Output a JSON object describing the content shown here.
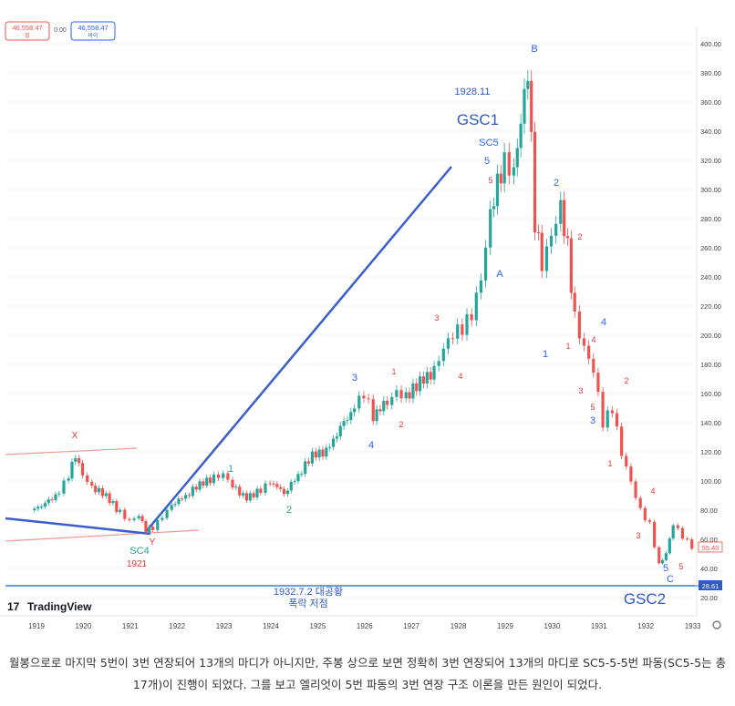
{
  "price_badges": {
    "bid": "46,558.47",
    "bid_label": "팝",
    "spread": "0.00",
    "ask": "46,558.47",
    "ask_label": "바이"
  },
  "colors": {
    "up": "#26a69a",
    "down": "#ef5350",
    "wave_blue": "#2962ff",
    "wave_red": "#e53935",
    "line_blue": "#3a5fcd",
    "text_blue": "#2f59c7"
  },
  "chart_data": {
    "type": "candlestick",
    "title": "",
    "x_axis": {
      "ticks": [
        "1919",
        "1920",
        "1921",
        "1922",
        "1923",
        "1924",
        "1925",
        "1926",
        "1927",
        "1928",
        "1929",
        "1930",
        "1931",
        "1932",
        "1933"
      ]
    },
    "y_axis": {
      "ticks": [
        "400.00",
        "380.00",
        "360.00",
        "340.00",
        "320.00",
        "300.00",
        "280.00",
        "260.00",
        "240.00",
        "220.00",
        "200.00",
        "180.00",
        "160.00",
        "140.00",
        "120.00",
        "100.00",
        "80.00",
        "60.00",
        "40.00",
        "20.00"
      ],
      "range": [
        15,
        405
      ]
    },
    "current_price": "55.40",
    "low_price": "28.61",
    "series": [
      [
        1919.0,
        80
      ],
      [
        1919.3,
        84
      ],
      [
        1919.6,
        92
      ],
      [
        1919.8,
        104
      ],
      [
        1919.95,
        118
      ],
      [
        1920.1,
        105
      ],
      [
        1920.3,
        96
      ],
      [
        1920.6,
        90
      ],
      [
        1920.9,
        78
      ],
      [
        1921.1,
        72
      ],
      [
        1921.3,
        76
      ],
      [
        1921.45,
        66
      ],
      [
        1921.6,
        68
      ],
      [
        1921.8,
        76
      ],
      [
        1922.0,
        84
      ],
      [
        1922.3,
        90
      ],
      [
        1922.6,
        98
      ],
      [
        1922.9,
        102
      ],
      [
        1923.1,
        104
      ],
      [
        1923.3,
        96
      ],
      [
        1923.6,
        88
      ],
      [
        1923.9,
        94
      ],
      [
        1924.1,
        100
      ],
      [
        1924.4,
        92
      ],
      [
        1924.7,
        104
      ],
      [
        1925.0,
        118
      ],
      [
        1925.3,
        120
      ],
      [
        1925.6,
        136
      ],
      [
        1925.9,
        150
      ],
      [
        1926.1,
        160
      ],
      [
        1926.3,
        145
      ],
      [
        1926.6,
        155
      ],
      [
        1926.8,
        162
      ],
      [
        1927.0,
        158
      ],
      [
        1927.3,
        168
      ],
      [
        1927.6,
        175
      ],
      [
        1927.8,
        190
      ],
      [
        1928.0,
        200
      ],
      [
        1928.2,
        205
      ],
      [
        1928.4,
        215
      ],
      [
        1928.6,
        240
      ],
      [
        1928.8,
        285
      ],
      [
        1928.95,
        305
      ],
      [
        1929.1,
        318
      ],
      [
        1929.3,
        310
      ],
      [
        1929.45,
        345
      ],
      [
        1929.6,
        380
      ],
      [
        1929.75,
        280
      ],
      [
        1929.9,
        250
      ],
      [
        1930.1,
        270
      ],
      [
        1930.3,
        290
      ],
      [
        1930.45,
        260
      ],
      [
        1930.6,
        210
      ],
      [
        1930.8,
        190
      ],
      [
        1931.0,
        175
      ],
      [
        1931.2,
        140
      ],
      [
        1931.4,
        150
      ],
      [
        1931.6,
        120
      ],
      [
        1931.8,
        100
      ],
      [
        1932.0,
        80
      ],
      [
        1932.2,
        70
      ],
      [
        1932.4,
        42
      ],
      [
        1932.55,
        50
      ],
      [
        1932.7,
        70
      ],
      [
        1932.9,
        62
      ],
      [
        1933.1,
        55
      ]
    ],
    "annotations": {
      "wave_labels": [
        "X",
        "Y",
        "SC4",
        "1921",
        "1",
        "2",
        "3",
        "4",
        "1",
        "2",
        "3",
        "4",
        "5",
        "A",
        "SC5",
        "5",
        "B",
        "GSC1",
        "1928.11",
        "2",
        "2",
        "1",
        "4",
        "1",
        "3",
        "5",
        "4",
        "3",
        "2",
        "1",
        "4",
        "3",
        "5",
        "C",
        "5",
        "GSC2"
      ],
      "bottom_note": [
        "1932.7.2 대공황",
        "폭락 저점"
      ]
    }
  },
  "watermark": "TradingView",
  "caption": [
    "월봉으로로 마지막 5번이 3번 연장되어 13개의 마디가 아니지만, 주봉 상으로 보면 정확히 3번 연장되어 13개의 마디로 SC5-5-5번 파동(SC5-5는 총",
    "17개)이 진행이 되었다. 그를 보고 엘리엇이 5번 파동의 3번 연장 구조 이론을 만든 원인이 되었다."
  ]
}
